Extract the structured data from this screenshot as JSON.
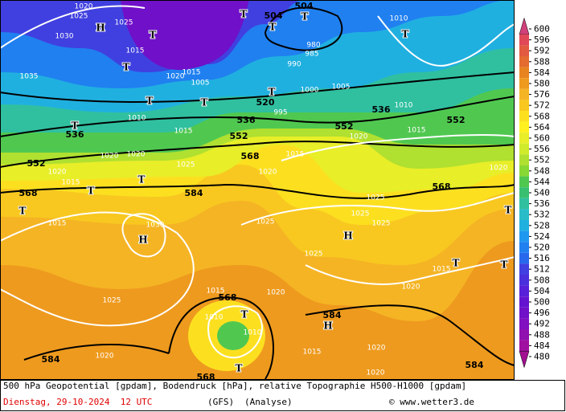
{
  "map": {
    "footer": {
      "line1": "500 hPa Geopotential [gpdam], Bodendruck [hPa], relative Topographie H500-H1000 [gpdam]",
      "date": "Dienstag, 29-10-2024  12 UTC",
      "model": "(GFS)",
      "run": "(Analyse)",
      "credit": "© www.wetter3.de"
    },
    "height_labels": [
      "504",
      "504",
      "520",
      "536",
      "536",
      "536",
      "552",
      "552",
      "552",
      "552",
      "568",
      "568",
      "568",
      "584",
      "584",
      "584",
      "584",
      "568",
      "568"
    ],
    "pressure_labels": [
      "1020",
      "1025",
      "1030",
      "1025",
      "1035",
      "1015",
      "1010",
      "1015",
      "1020",
      "1020",
      "1025",
      "1020",
      "1015",
      "1015",
      "1030",
      "1025",
      "1020",
      "1015",
      "1010",
      "1010",
      "1020",
      "1025",
      "1025",
      "1025",
      "1025",
      "1025",
      "1020",
      "1015",
      "1020",
      "1015",
      "1010",
      "1005",
      "1000",
      "995",
      "990",
      "985",
      "980",
      "1010",
      "1020",
      "1020",
      "1015",
      "1015",
      "1020",
      "1020",
      "1005",
      "1015",
      "1020"
    ],
    "centers": [
      "H",
      "H",
      "H",
      "H",
      "T",
      "T",
      "T",
      "T",
      "T",
      "T",
      "T",
      "T",
      "T",
      "T",
      "T",
      "T",
      "T",
      "T",
      "T",
      "T",
      "T",
      "T"
    ],
    "legend": {
      "ticks": [
        600,
        596,
        592,
        588,
        584,
        580,
        576,
        572,
        568,
        564,
        560,
        556,
        552,
        548,
        544,
        540,
        536,
        532,
        528,
        524,
        520,
        516,
        512,
        508,
        504,
        500,
        496,
        492,
        488,
        484,
        480
      ],
      "colors": [
        "#d0407a",
        "#e04858",
        "#e25a40",
        "#e46c30",
        "#e88420",
        "#ee9a1e",
        "#f5b424",
        "#f8c820",
        "#fce020",
        "#fff020",
        "#e8ee28",
        "#d0ea2c",
        "#b0e030",
        "#88d834",
        "#50c850",
        "#38c070",
        "#30c0a0",
        "#28bcc8",
        "#20b0e0",
        "#2098f0",
        "#2080f0",
        "#2868ec",
        "#4040e0",
        "#4a30dc",
        "#5820d8",
        "#6414d0",
        "#7010c8",
        "#8010c0",
        "#9010b0",
        "#a010a0",
        "#a01090"
      ]
    }
  }
}
